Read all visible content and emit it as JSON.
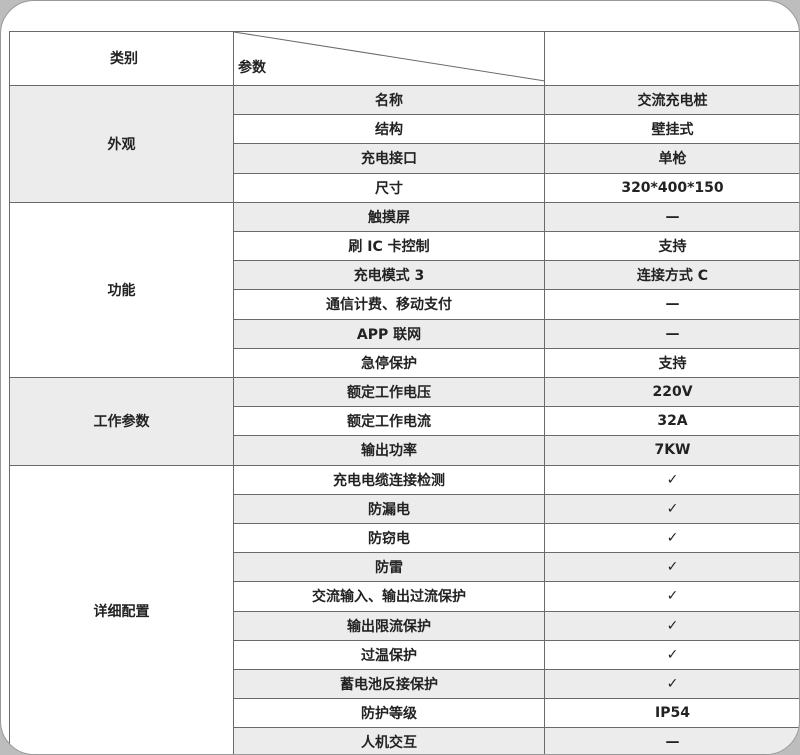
{
  "header": {
    "category": "类别",
    "parameter": "参数"
  },
  "groups": [
    {
      "name": "外观",
      "rows": [
        [
          "名称",
          "交流充电桩"
        ],
        [
          "结构",
          "壁挂式"
        ],
        [
          "充电接口",
          "单枪"
        ],
        [
          "尺寸",
          "320*400*150"
        ]
      ]
    },
    {
      "name": "功能",
      "rows": [
        [
          "触摸屏",
          "—"
        ],
        [
          "刷 IC 卡控制",
          "支持"
        ],
        [
          "充电模式 3",
          "连接方式 C"
        ],
        [
          "通信计费、移动支付",
          "—"
        ],
        [
          "APP 联网",
          "—"
        ],
        [
          "急停保护",
          "支持"
        ]
      ]
    },
    {
      "name": "工作参数",
      "rows": [
        [
          "额定工作电压",
          "220V"
        ],
        [
          "额定工作电流",
          "32A"
        ],
        [
          "输出功率",
          "7KW"
        ]
      ]
    },
    {
      "name": "详细配置",
      "rows": [
        [
          "充电电缆连接检测",
          "✓"
        ],
        [
          "防漏电",
          "✓"
        ],
        [
          "防窃电",
          "✓"
        ],
        [
          "防雷",
          "✓"
        ],
        [
          "交流输入、输出过流保护",
          "✓"
        ],
        [
          "输出限流保护",
          "✓"
        ],
        [
          "过温保护",
          "✓"
        ],
        [
          "蓄电池反接保护",
          "✓"
        ],
        [
          "防护等级",
          "IP54"
        ],
        [
          "人机交互",
          "—"
        ]
      ]
    }
  ]
}
